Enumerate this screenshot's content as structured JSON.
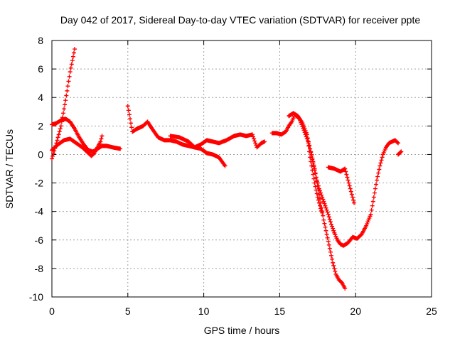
{
  "chart_data": {
    "type": "scatter",
    "title": "Day 042 of 2017, Sidereal Day-to-day VTEC variation (SDTVAR) for receiver ppte",
    "xlabel": "GPS time / hours",
    "ylabel": "SDTVAR / TECUs",
    "xlim": [
      0,
      25
    ],
    "ylim": [
      -10,
      8
    ],
    "xticks": [
      0,
      5,
      10,
      15,
      20,
      25
    ],
    "yticks": [
      -10,
      -8,
      -6,
      -4,
      -2,
      0,
      2,
      4,
      6,
      8
    ],
    "grid": true,
    "marker": "+",
    "color": "#ff0000",
    "series": [
      {
        "x": [
          0.0,
          0.3,
          0.6,
          0.9,
          1.2,
          1.5
        ],
        "y": [
          -0.3,
          0.8,
          2.0,
          3.8,
          5.8,
          7.4
        ]
      },
      {
        "x": [
          0.0,
          0.3,
          0.6,
          0.9,
          1.2,
          1.5,
          1.8,
          2.1,
          2.4,
          2.7,
          3.0,
          3.3,
          3.6,
          4.0,
          4.5
        ],
        "y": [
          2.1,
          2.2,
          2.4,
          2.5,
          2.3,
          1.8,
          1.2,
          0.7,
          0.3,
          0.2,
          0.4,
          0.6,
          0.6,
          0.5,
          0.4
        ]
      },
      {
        "x": [
          0.0,
          0.4,
          0.8,
          1.2,
          1.6,
          2.0,
          2.4,
          2.6,
          2.8,
          3.0,
          3.2,
          3.3
        ],
        "y": [
          0.3,
          0.7,
          1.0,
          1.1,
          0.8,
          0.5,
          0.1,
          -0.1,
          0.1,
          0.5,
          0.9,
          1.3
        ]
      },
      {
        "x": [
          5.0,
          5.3,
          5.6,
          6.0,
          6.3,
          6.6,
          7.0,
          7.4,
          7.8,
          8.2,
          8.6,
          9.0,
          9.4,
          9.8,
          10.2,
          10.6,
          11.0,
          11.4
        ],
        "y": [
          3.4,
          1.6,
          1.8,
          2.0,
          2.3,
          1.8,
          1.2,
          1.0,
          1.0,
          0.9,
          0.7,
          0.6,
          0.5,
          0.4,
          0.1,
          0.0,
          -0.2,
          -0.8
        ]
      },
      {
        "x": [
          7.8,
          8.4,
          9.0,
          9.4,
          9.8,
          10.2,
          10.6,
          11.0,
          11.5,
          12.0,
          12.4,
          12.8,
          13.2,
          13.5,
          13.8,
          14.0
        ],
        "y": [
          1.3,
          1.2,
          0.9,
          0.5,
          0.7,
          1.0,
          0.9,
          0.8,
          1.0,
          1.3,
          1.4,
          1.3,
          1.4,
          0.5,
          0.8,
          0.9
        ]
      },
      {
        "x": [
          14.5,
          14.8,
          15.1,
          15.4,
          15.6,
          15.8,
          16.0,
          16.3,
          16.6,
          16.9,
          17.1,
          17.3,
          17.5,
          17.7,
          17.9,
          18.1,
          18.3,
          18.5,
          18.7,
          18.9,
          19.1,
          19.3
        ],
        "y": [
          1.5,
          1.5,
          1.4,
          1.6,
          2.0,
          2.3,
          2.8,
          2.5,
          1.7,
          0.8,
          0.0,
          -1.0,
          -2.2,
          -3.4,
          -4.6,
          -5.6,
          -6.6,
          -7.6,
          -8.4,
          -8.8,
          -9.0,
          -9.4
        ]
      },
      {
        "x": [
          15.6,
          15.9,
          16.2,
          16.5,
          16.8,
          17.0,
          17.2,
          17.4,
          17.6,
          17.8,
          18.0,
          18.2,
          18.4,
          18.6,
          18.8,
          19.0,
          19.2,
          19.5,
          19.8,
          20.1,
          20.4,
          20.7,
          21.0,
          21.2,
          21.4,
          21.6,
          21.8,
          22.0,
          22.2,
          22.4,
          22.6,
          22.8
        ],
        "y": [
          2.7,
          2.9,
          2.7,
          2.2,
          1.4,
          0.4,
          -0.6,
          -1.6,
          -2.4,
          -3.0,
          -3.6,
          -4.2,
          -4.9,
          -5.5,
          -6.0,
          -6.3,
          -6.4,
          -6.2,
          -5.8,
          -5.9,
          -5.6,
          -5.0,
          -4.2,
          -3.0,
          -1.8,
          -0.8,
          0.0,
          0.5,
          0.8,
          0.9,
          1.0,
          0.8
        ]
      },
      {
        "x": [
          16.9,
          17.0,
          17.1,
          17.2,
          17.3,
          17.4,
          17.5,
          17.6,
          17.7,
          17.8
        ],
        "y": [
          0.6,
          -0.2,
          -0.8,
          -1.4,
          -2.0,
          -2.5,
          -3.0,
          -3.4,
          -3.8,
          -4.1
        ]
      },
      {
        "x": [
          18.2,
          18.6,
          19.0,
          19.3,
          19.5,
          19.7,
          19.9
        ],
        "y": [
          -0.9,
          -1.0,
          -1.2,
          -1.0,
          -1.8,
          -2.6,
          -3.4
        ]
      },
      {
        "x": [
          22.8,
          23.0
        ],
        "y": [
          0.0,
          0.2
        ]
      }
    ]
  }
}
